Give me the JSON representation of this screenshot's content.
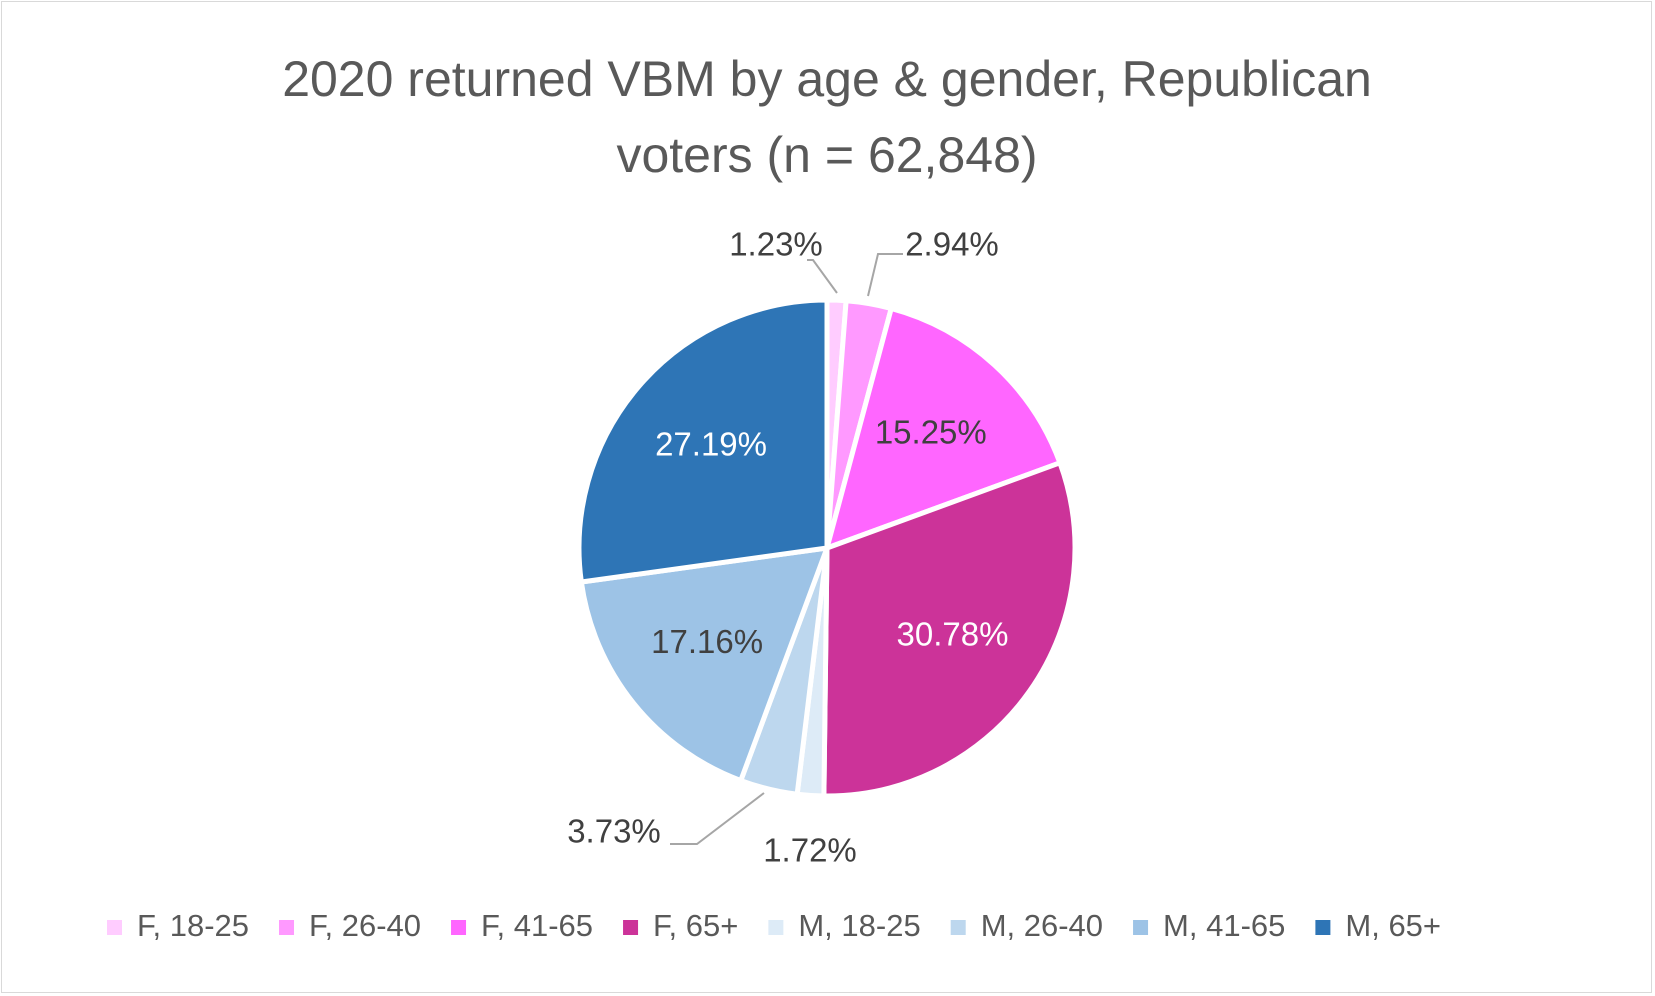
{
  "chart_data": {
    "type": "pie",
    "title_lines": [
      "2020 returned VBM by age & gender, Republican",
      "voters (n = 62,848)"
    ],
    "categories": [
      "F, 18-25",
      "F, 26-40",
      "F, 41-65",
      "F, 65+",
      "M, 18-25",
      "M, 26-40",
      "M, 41-65",
      "M, 65+"
    ],
    "values": [
      1.23,
      2.94,
      15.25,
      30.78,
      1.72,
      3.73,
      17.16,
      27.19
    ],
    "labels": [
      "1.23%",
      "2.94%",
      "15.25%",
      "30.78%",
      "1.72%",
      "3.73%",
      "17.16%",
      "27.19%"
    ],
    "colors": [
      "#FFCCFF",
      "#FF99FF",
      "#FF66FF",
      "#CC3399",
      "#DDEBF7",
      "#BDD7EE",
      "#9DC3E6",
      "#2E75B6"
    ],
    "label_colors": [
      "#404040",
      "#404040",
      "#404040",
      "#ffffff",
      "#404040",
      "#404040",
      "#404040",
      "#ffffff"
    ],
    "legend_position": "bottom"
  }
}
